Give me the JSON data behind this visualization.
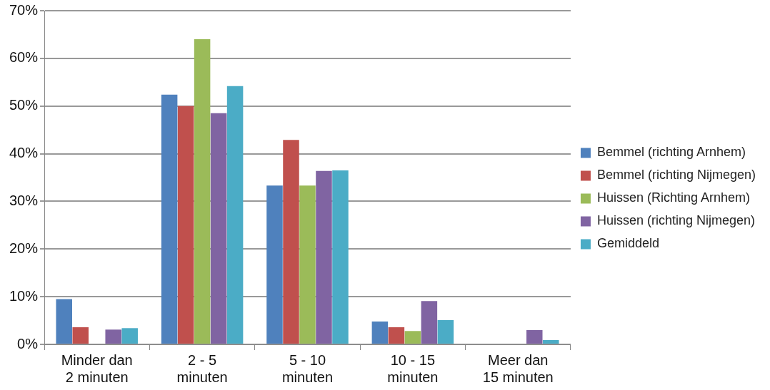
{
  "chart_data": {
    "type": "bar",
    "categories": [
      "Minder dan 2 minuten",
      "2 - 5 minuten",
      "5 - 10 minuten",
      "10 - 15 minuten",
      "Meer dan 15 minuten"
    ],
    "series": [
      {
        "name": "Bemmel (richting Arnhem)",
        "color": "#4f81bd",
        "values": [
          9.5,
          52.4,
          33.3,
          4.8,
          0
        ]
      },
      {
        "name": "Bemmel (richting Nijmegen)",
        "color": "#c0504d",
        "values": [
          3.6,
          50,
          42.9,
          3.6,
          0
        ]
      },
      {
        "name": "Huissen (Richting Arnhem)",
        "color": "#9bbb59",
        "values": [
          0,
          64,
          33.3,
          2.8,
          0
        ]
      },
      {
        "name": "Huissen (richting Nijmegen)",
        "color": "#8064a2",
        "values": [
          3.1,
          48.5,
          36.4,
          9.1,
          3.0
        ]
      },
      {
        "name": "Gemiddeld",
        "color": "#4bacc6",
        "values": [
          3.4,
          54.2,
          36.5,
          5.1,
          0.9
        ]
      }
    ],
    "ylim": [
      0,
      70
    ],
    "yticks": [
      {
        "value": 0,
        "label": "0%"
      },
      {
        "value": 10,
        "label": "10%"
      },
      {
        "value": 20,
        "label": "20%"
      },
      {
        "value": 30,
        "label": "30%"
      },
      {
        "value": 40,
        "label": "40%"
      },
      {
        "value": 50,
        "label": "50%"
      },
      {
        "value": 60,
        "label": "60%"
      },
      {
        "value": 70,
        "label": "70%"
      }
    ],
    "grid": "y",
    "legend": "right"
  }
}
